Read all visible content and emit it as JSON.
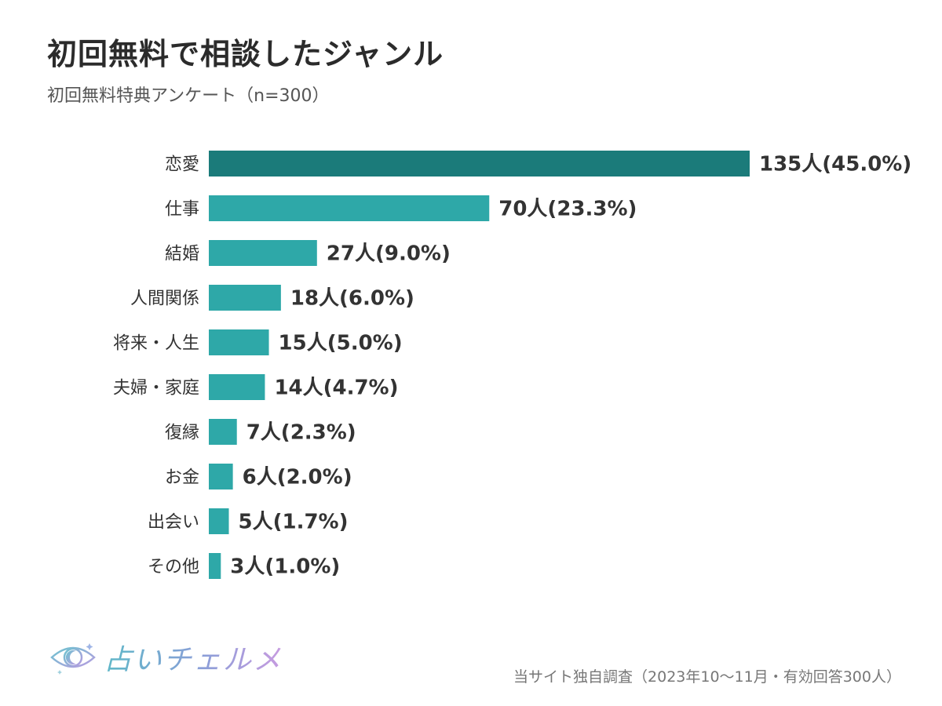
{
  "header": {
    "title": "初回無料で相談したジャンル",
    "subtitle": "初回無料特典アンケート（n=300）"
  },
  "chart_data": {
    "type": "bar",
    "orientation": "horizontal",
    "title": "初回無料で相談したジャンル",
    "subtitle": "初回無料特典アンケート（n=300）",
    "categories": [
      "恋愛",
      "仕事",
      "結婚",
      "人間関係",
      "将来・人生",
      "夫婦・家庭",
      "復縁",
      "お金",
      "出会い",
      "その他"
    ],
    "values": [
      135,
      70,
      27,
      18,
      15,
      14,
      7,
      6,
      5,
      3
    ],
    "value_labels": [
      "135人(45.0%)",
      "70人(23.3%)",
      "27人(9.0%)",
      "18人(6.0%)",
      "15人(5.0%)",
      "14人(4.7%)",
      "7人(2.3%)",
      "6人(2.0%)",
      "5人(1.7%)",
      "3人(1.0%)"
    ],
    "percentages": [
      45.0,
      23.3,
      9.0,
      6.0,
      5.0,
      4.7,
      2.3,
      2.0,
      1.7,
      1.0
    ],
    "xlim": [
      0,
      135
    ],
    "grid": false,
    "legend": "none",
    "colors": {
      "highlight": "#1b7b7a",
      "bar": "#2ea8a8"
    }
  },
  "footer": {
    "logo_text": "占いチェルメ",
    "source": "当サイト独自調査（2023年10〜11月・有効回答300人）"
  },
  "icons": {
    "logo": "eye-moon-icon"
  }
}
